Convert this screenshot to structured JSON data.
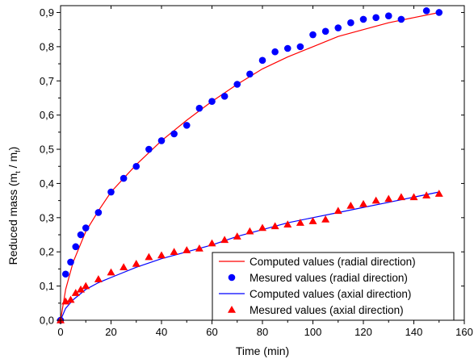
{
  "chart_data": {
    "type": "scatter",
    "xlabel": "Time (min)",
    "ylabel": {
      "prefix": "Reduced mass (m",
      "sub1": "t",
      "mid": " / m",
      "sub2": "f",
      "suffix": ")"
    },
    "xlim": [
      0,
      160
    ],
    "ylim": [
      0,
      0.92
    ],
    "xticks": [
      0,
      20,
      40,
      60,
      80,
      100,
      120,
      140,
      160
    ],
    "yticks": [
      0,
      0.1,
      0.2,
      0.3,
      0.4,
      0.5,
      0.6,
      0.7,
      0.8,
      0.9
    ],
    "xtick_labels": [
      "0",
      "20",
      "40",
      "60",
      "80",
      "100",
      "120",
      "140",
      "160"
    ],
    "ytick_labels": [
      "0,0",
      "0,1",
      "0,2",
      "0,3",
      "0,4",
      "0,5",
      "0,6",
      "0,7",
      "0,8",
      "0,9"
    ],
    "grid": false,
    "legend_position": "bottom-right",
    "series": [
      {
        "name": "Computed values (radial direction)",
        "kind": "line",
        "color": "#ff0000",
        "points": [
          [
            0,
            0
          ],
          [
            2,
            0.09
          ],
          [
            5,
            0.17
          ],
          [
            10,
            0.26
          ],
          [
            15,
            0.32
          ],
          [
            20,
            0.375
          ],
          [
            30,
            0.455
          ],
          [
            40,
            0.525
          ],
          [
            50,
            0.585
          ],
          [
            60,
            0.64
          ],
          [
            70,
            0.69
          ],
          [
            80,
            0.735
          ],
          [
            90,
            0.77
          ],
          [
            100,
            0.8
          ],
          [
            110,
            0.83
          ],
          [
            120,
            0.85
          ],
          [
            130,
            0.87
          ],
          [
            140,
            0.885
          ],
          [
            150,
            0.9
          ]
        ]
      },
      {
        "name": "Mesured values (radial direction)",
        "kind": "scatter",
        "marker": "circle",
        "color": "#0000ff",
        "points": [
          [
            0,
            0
          ],
          [
            2,
            0.135
          ],
          [
            4,
            0.17
          ],
          [
            6,
            0.215
          ],
          [
            8,
            0.25
          ],
          [
            10,
            0.27
          ],
          [
            15,
            0.315
          ],
          [
            20,
            0.375
          ],
          [
            25,
            0.415
          ],
          [
            30,
            0.45
          ],
          [
            35,
            0.5
          ],
          [
            40,
            0.525
          ],
          [
            45,
            0.545
          ],
          [
            50,
            0.57
          ],
          [
            55,
            0.62
          ],
          [
            60,
            0.64
          ],
          [
            65,
            0.655
          ],
          [
            70,
            0.69
          ],
          [
            75,
            0.72
          ],
          [
            80,
            0.76
          ],
          [
            85,
            0.785
          ],
          [
            90,
            0.795
          ],
          [
            95,
            0.8
          ],
          [
            100,
            0.835
          ],
          [
            105,
            0.845
          ],
          [
            110,
            0.855
          ],
          [
            115,
            0.87
          ],
          [
            120,
            0.88
          ],
          [
            125,
            0.885
          ],
          [
            130,
            0.89
          ],
          [
            135,
            0.88
          ],
          [
            145,
            0.905
          ],
          [
            150,
            0.9
          ]
        ]
      },
      {
        "name": "Computed values (axial direction)",
        "kind": "line",
        "color": "#0000ff",
        "points": [
          [
            0,
            0
          ],
          [
            2,
            0.035
          ],
          [
            5,
            0.06
          ],
          [
            10,
            0.09
          ],
          [
            15,
            0.11
          ],
          [
            20,
            0.125
          ],
          [
            30,
            0.155
          ],
          [
            40,
            0.18
          ],
          [
            50,
            0.2
          ],
          [
            60,
            0.22
          ],
          [
            70,
            0.245
          ],
          [
            80,
            0.265
          ],
          [
            90,
            0.285
          ],
          [
            100,
            0.3
          ],
          [
            110,
            0.315
          ],
          [
            120,
            0.33
          ],
          [
            130,
            0.345
          ],
          [
            140,
            0.36
          ],
          [
            150,
            0.375
          ]
        ]
      },
      {
        "name": "Mesured values (axial direction)",
        "kind": "scatter",
        "marker": "triangle",
        "color": "#ff0000",
        "points": [
          [
            0,
            0
          ],
          [
            2,
            0.055
          ],
          [
            4,
            0.06
          ],
          [
            6,
            0.08
          ],
          [
            8,
            0.09
          ],
          [
            10,
            0.1
          ],
          [
            15,
            0.12
          ],
          [
            20,
            0.14
          ],
          [
            25,
            0.155
          ],
          [
            30,
            0.165
          ],
          [
            35,
            0.185
          ],
          [
            40,
            0.19
          ],
          [
            45,
            0.2
          ],
          [
            50,
            0.205
          ],
          [
            55,
            0.21
          ],
          [
            60,
            0.225
          ],
          [
            65,
            0.235
          ],
          [
            70,
            0.245
          ],
          [
            75,
            0.26
          ],
          [
            80,
            0.27
          ],
          [
            85,
            0.275
          ],
          [
            90,
            0.28
          ],
          [
            95,
            0.285
          ],
          [
            100,
            0.29
          ],
          [
            105,
            0.295
          ],
          [
            110,
            0.32
          ],
          [
            115,
            0.335
          ],
          [
            120,
            0.34
          ],
          [
            125,
            0.35
          ],
          [
            130,
            0.355
          ],
          [
            135,
            0.36
          ],
          [
            140,
            0.36
          ],
          [
            145,
            0.365
          ],
          [
            150,
            0.37
          ]
        ]
      }
    ]
  }
}
